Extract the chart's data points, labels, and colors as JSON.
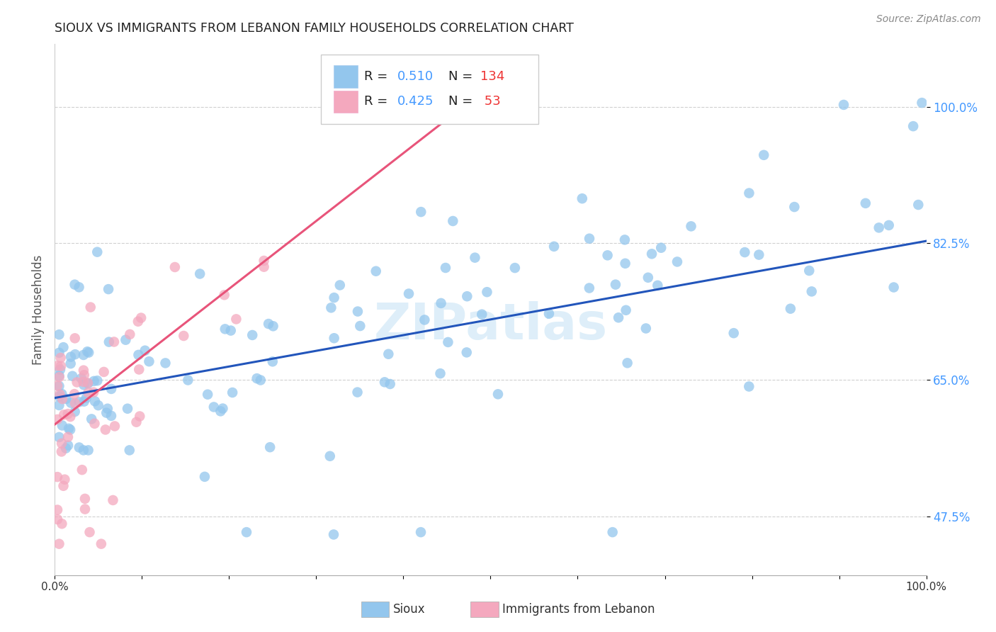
{
  "title": "SIOUX VS IMMIGRANTS FROM LEBANON FAMILY HOUSEHOLDS CORRELATION CHART",
  "source": "Source: ZipAtlas.com",
  "ylabel": "Family Households",
  "xlim": [
    0.0,
    1.0
  ],
  "ylim": [
    0.4,
    1.08
  ],
  "y_ticks": [
    0.475,
    0.65,
    0.825,
    1.0
  ],
  "y_tick_labels": [
    "47.5%",
    "65.0%",
    "82.5%",
    "100.0%"
  ],
  "blue_color": "#93C6ED",
  "pink_color": "#F4A8BE",
  "blue_line_color": "#2255BB",
  "pink_line_color": "#E8547A",
  "blue_line_start_x": 0.0,
  "blue_line_start_y": 0.627,
  "blue_line_end_x": 1.0,
  "blue_line_end_y": 0.828,
  "pink_line_start_x": 0.0,
  "pink_line_start_y": 0.593,
  "pink_line_end_x": 0.48,
  "pink_line_end_y": 1.01,
  "watermark_text": "ZIPatlas",
  "legend_R_color": "#4499FF",
  "legend_N_color": "#EE3333",
  "title_color": "#222222",
  "tick_label_color": "#4499FF",
  "source_color": "#888888"
}
